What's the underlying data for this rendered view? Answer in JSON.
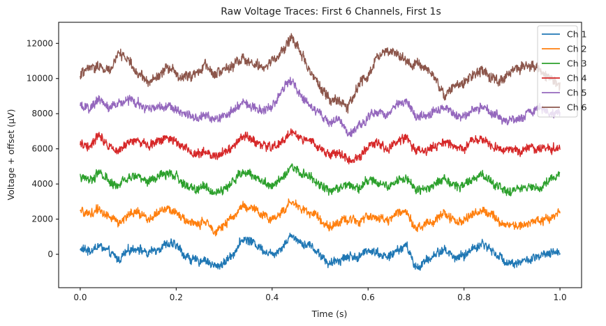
{
  "chart_data": {
    "type": "line",
    "title": "Raw Voltage Traces: First 6 Channels, First 1s",
    "xlabel": "Time (s)",
    "ylabel": "Voltage + offset (µV)",
    "xlim": [
      -0.045,
      1.045
    ],
    "ylim": [
      -1900,
      13200
    ],
    "xticks": [
      0.0,
      0.2,
      0.4,
      0.6,
      0.8,
      1.0
    ],
    "xtick_labels": [
      "0.0",
      "0.2",
      "0.4",
      "0.6",
      "0.8",
      "1.0"
    ],
    "yticks": [
      0,
      2000,
      4000,
      6000,
      8000,
      10000,
      12000
    ],
    "ytick_labels": [
      "0",
      "2000",
      "4000",
      "6000",
      "8000",
      "10000",
      "12000"
    ],
    "grid": false,
    "legend_position": "top-right",
    "series": [
      {
        "name": "Ch 1",
        "color": "#1f77b4",
        "x": [
          0.0,
          0.02,
          0.04,
          0.06,
          0.08,
          0.1,
          0.12,
          0.14,
          0.16,
          0.18,
          0.2,
          0.22,
          0.24,
          0.26,
          0.28,
          0.3,
          0.32,
          0.34,
          0.36,
          0.38,
          0.4,
          0.42,
          0.44,
          0.46,
          0.48,
          0.5,
          0.52,
          0.54,
          0.56,
          0.58,
          0.6,
          0.62,
          0.64,
          0.66,
          0.68,
          0.7,
          0.72,
          0.74,
          0.76,
          0.78,
          0.8,
          0.82,
          0.84,
          0.86,
          0.88,
          0.9,
          0.92,
          0.94,
          0.96,
          0.98,
          1.0
        ],
        "y": [
          300,
          200,
          500,
          100,
          -300,
          200,
          400,
          0,
          300,
          600,
          500,
          -100,
          -400,
          -300,
          -700,
          -500,
          100,
          900,
          700,
          300,
          0,
          400,
          1100,
          700,
          500,
          0,
          -600,
          -300,
          -100,
          -200,
          300,
          100,
          -200,
          200,
          500,
          -800,
          -400,
          0,
          300,
          -200,
          -100,
          400,
          600,
          200,
          -300,
          -500,
          -400,
          -300,
          -100,
          0,
          200
        ],
        "noise": 300
      },
      {
        "name": "Ch 2",
        "color": "#ff7f0e",
        "x": [
          0.0,
          0.02,
          0.04,
          0.06,
          0.08,
          0.1,
          0.12,
          0.14,
          0.16,
          0.18,
          0.2,
          0.22,
          0.24,
          0.26,
          0.28,
          0.3,
          0.32,
          0.34,
          0.36,
          0.38,
          0.4,
          0.42,
          0.44,
          0.46,
          0.48,
          0.5,
          0.52,
          0.54,
          0.56,
          0.58,
          0.6,
          0.62,
          0.64,
          0.66,
          0.68,
          0.7,
          0.72,
          0.74,
          0.76,
          0.78,
          0.8,
          0.82,
          0.84,
          0.86,
          0.88,
          0.9,
          0.92,
          0.94,
          0.96,
          0.98,
          1.0
        ],
        "y": [
          2400,
          2300,
          2600,
          2100,
          1800,
          2200,
          2400,
          2000,
          2300,
          2600,
          2400,
          1900,
          1700,
          1800,
          1400,
          1600,
          2200,
          2800,
          2600,
          2200,
          2000,
          2400,
          3000,
          2600,
          2400,
          2000,
          1600,
          1800,
          2000,
          1900,
          2200,
          2100,
          1900,
          2300,
          2500,
          1500,
          1700,
          2000,
          2300,
          1900,
          1900,
          2400,
          2500,
          2200,
          1800,
          1600,
          1700,
          1800,
          1900,
          2100,
          2400
        ],
        "noise": 300
      },
      {
        "name": "Ch 3",
        "color": "#2ca02c",
        "x": [
          0.0,
          0.02,
          0.04,
          0.06,
          0.08,
          0.1,
          0.12,
          0.14,
          0.16,
          0.18,
          0.2,
          0.22,
          0.24,
          0.26,
          0.28,
          0.3,
          0.32,
          0.34,
          0.36,
          0.38,
          0.4,
          0.42,
          0.44,
          0.46,
          0.48,
          0.5,
          0.52,
          0.54,
          0.56,
          0.58,
          0.6,
          0.62,
          0.64,
          0.66,
          0.68,
          0.7,
          0.72,
          0.74,
          0.76,
          0.78,
          0.8,
          0.82,
          0.84,
          0.86,
          0.88,
          0.9,
          0.92,
          0.94,
          0.96,
          0.98,
          1.0
        ],
        "y": [
          4400,
          4200,
          4700,
          4100,
          3900,
          4300,
          4500,
          4100,
          4400,
          4600,
          4400,
          3900,
          3700,
          3900,
          3500,
          3700,
          4200,
          4700,
          4500,
          4200,
          3900,
          4400,
          5000,
          4600,
          4400,
          4000,
          3600,
          3800,
          4000,
          3800,
          4200,
          4100,
          3800,
          4200,
          4400,
          3600,
          3700,
          4000,
          4300,
          3900,
          3900,
          4400,
          4500,
          4100,
          3700,
          3600,
          3700,
          3800,
          3900,
          4200,
          4500
        ],
        "noise": 300
      },
      {
        "name": "Ch 4",
        "color": "#d62728",
        "x": [
          0.0,
          0.02,
          0.04,
          0.06,
          0.08,
          0.1,
          0.12,
          0.14,
          0.16,
          0.18,
          0.2,
          0.22,
          0.24,
          0.26,
          0.28,
          0.3,
          0.32,
          0.34,
          0.36,
          0.38,
          0.4,
          0.42,
          0.44,
          0.46,
          0.48,
          0.5,
          0.52,
          0.54,
          0.56,
          0.58,
          0.6,
          0.62,
          0.64,
          0.66,
          0.68,
          0.7,
          0.72,
          0.74,
          0.76,
          0.78,
          0.8,
          0.82,
          0.84,
          0.86,
          0.88,
          0.9,
          0.92,
          0.94,
          0.96,
          0.98,
          1.0
        ],
        "y": [
          6300,
          6200,
          6800,
          6200,
          6000,
          6300,
          6500,
          6200,
          6400,
          6700,
          6400,
          6000,
          5700,
          5900,
          5600,
          5800,
          6200,
          6700,
          6500,
          6200,
          6000,
          6400,
          7000,
          6600,
          6400,
          6000,
          5700,
          5800,
          5300,
          5500,
          6100,
          6300,
          6000,
          6400,
          6600,
          5800,
          5900,
          6100,
          6400,
          6000,
          6000,
          6500,
          6500,
          6100,
          5900,
          5800,
          5900,
          6000,
          6100,
          6000,
          6200
        ],
        "noise": 300
      },
      {
        "name": "Ch 5",
        "color": "#9467bd",
        "x": [
          0.0,
          0.02,
          0.04,
          0.06,
          0.08,
          0.1,
          0.12,
          0.14,
          0.16,
          0.18,
          0.2,
          0.22,
          0.24,
          0.26,
          0.28,
          0.3,
          0.32,
          0.34,
          0.36,
          0.38,
          0.4,
          0.42,
          0.44,
          0.46,
          0.48,
          0.5,
          0.52,
          0.54,
          0.56,
          0.58,
          0.6,
          0.62,
          0.64,
          0.66,
          0.68,
          0.7,
          0.72,
          0.74,
          0.76,
          0.78,
          0.8,
          0.82,
          0.84,
          0.86,
          0.88,
          0.9,
          0.92,
          0.94,
          0.96,
          0.98,
          1.0
        ],
        "y": [
          8400,
          8300,
          8800,
          8400,
          8500,
          8800,
          8600,
          8200,
          8400,
          8500,
          8300,
          7900,
          7700,
          7900,
          7600,
          7800,
          8200,
          8600,
          8400,
          8200,
          8400,
          9300,
          9900,
          9000,
          8400,
          7900,
          7500,
          7700,
          6700,
          7200,
          7800,
          8100,
          7900,
          8500,
          8700,
          7800,
          7800,
          8200,
          8300,
          7900,
          7900,
          8300,
          8400,
          8100,
          7700,
          7600,
          7800,
          8100,
          8400,
          7900,
          8100
        ],
        "noise": 300
      },
      {
        "name": "Ch 6",
        "color": "#8c564b",
        "x": [
          0.0,
          0.02,
          0.04,
          0.06,
          0.08,
          0.1,
          0.12,
          0.14,
          0.16,
          0.18,
          0.2,
          0.22,
          0.24,
          0.26,
          0.28,
          0.3,
          0.32,
          0.34,
          0.36,
          0.38,
          0.4,
          0.42,
          0.44,
          0.46,
          0.48,
          0.5,
          0.52,
          0.54,
          0.56,
          0.58,
          0.6,
          0.62,
          0.64,
          0.66,
          0.68,
          0.7,
          0.72,
          0.74,
          0.76,
          0.78,
          0.8,
          0.82,
          0.84,
          0.86,
          0.88,
          0.9,
          0.92,
          0.94,
          0.96,
          0.98,
          1.0
        ],
        "y": [
          10200,
          10500,
          10800,
          10400,
          11500,
          11000,
          10300,
          9800,
          10100,
          10600,
          10300,
          10000,
          10400,
          10700,
          10300,
          10500,
          10800,
          11100,
          10800,
          10600,
          11000,
          11500,
          12400,
          11400,
          10300,
          9500,
          8900,
          8700,
          8400,
          9500,
          10200,
          11200,
          11600,
          11400,
          11000,
          10800,
          10600,
          10000,
          9100,
          9600,
          9800,
          10300,
          10500,
          10000,
          9900,
          10600,
          10600,
          10800,
          10400,
          10100,
          9600
        ],
        "noise": 350
      }
    ]
  }
}
